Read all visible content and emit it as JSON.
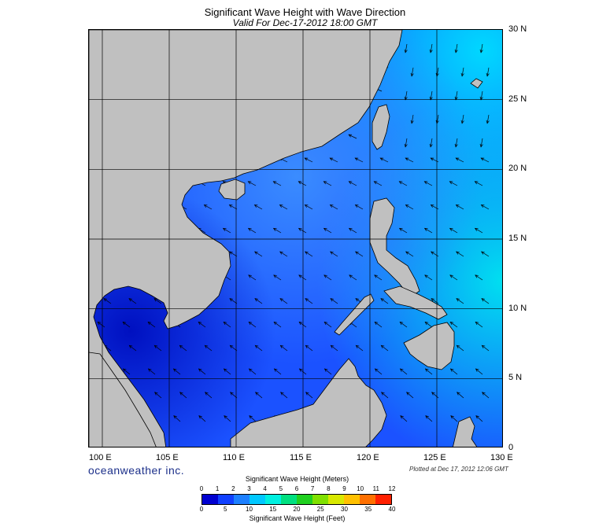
{
  "title": "Significant Wave Height with Wave Direction",
  "subtitle": "Valid For Dec-17-2012 18:00 GMT",
  "map": {
    "lon_range": [
      99,
      130
    ],
    "lat_range": [
      0,
      30
    ],
    "land_color": "#c0c0c0",
    "grid_color": "#000000",
    "lat_labels": [
      "30 N",
      "25 N",
      "20 N",
      "15 N",
      "10 N",
      "5 N",
      "0"
    ],
    "lon_labels": [
      "100 E",
      "105 E",
      "110 E",
      "115 E",
      "120 E",
      "125 E",
      "130 E"
    ]
  },
  "branding": "oceanweather inc.",
  "plotted_note": "Plotted at Dec 17, 2012 12:06 GMT",
  "legend": {
    "meters_title": "Significant Wave Height (Meters)",
    "meters_ticks": [
      "0",
      "1",
      "2",
      "3",
      "4",
      "5",
      "6",
      "7",
      "8",
      "9",
      "10",
      "11",
      "12"
    ],
    "feet_title": "Significant Wave Height (Feet)",
    "feet_ticks": [
      "0",
      "5",
      "10",
      "15",
      "20",
      "25",
      "30",
      "35",
      "40"
    ],
    "colors": [
      "#0000d0",
      "#1040ff",
      "#1d80ff",
      "#00c8ff",
      "#00f0e0",
      "#00e080",
      "#20d020",
      "#80e000",
      "#d8e800",
      "#ffc000",
      "#ff7000",
      "#ff2000"
    ]
  }
}
